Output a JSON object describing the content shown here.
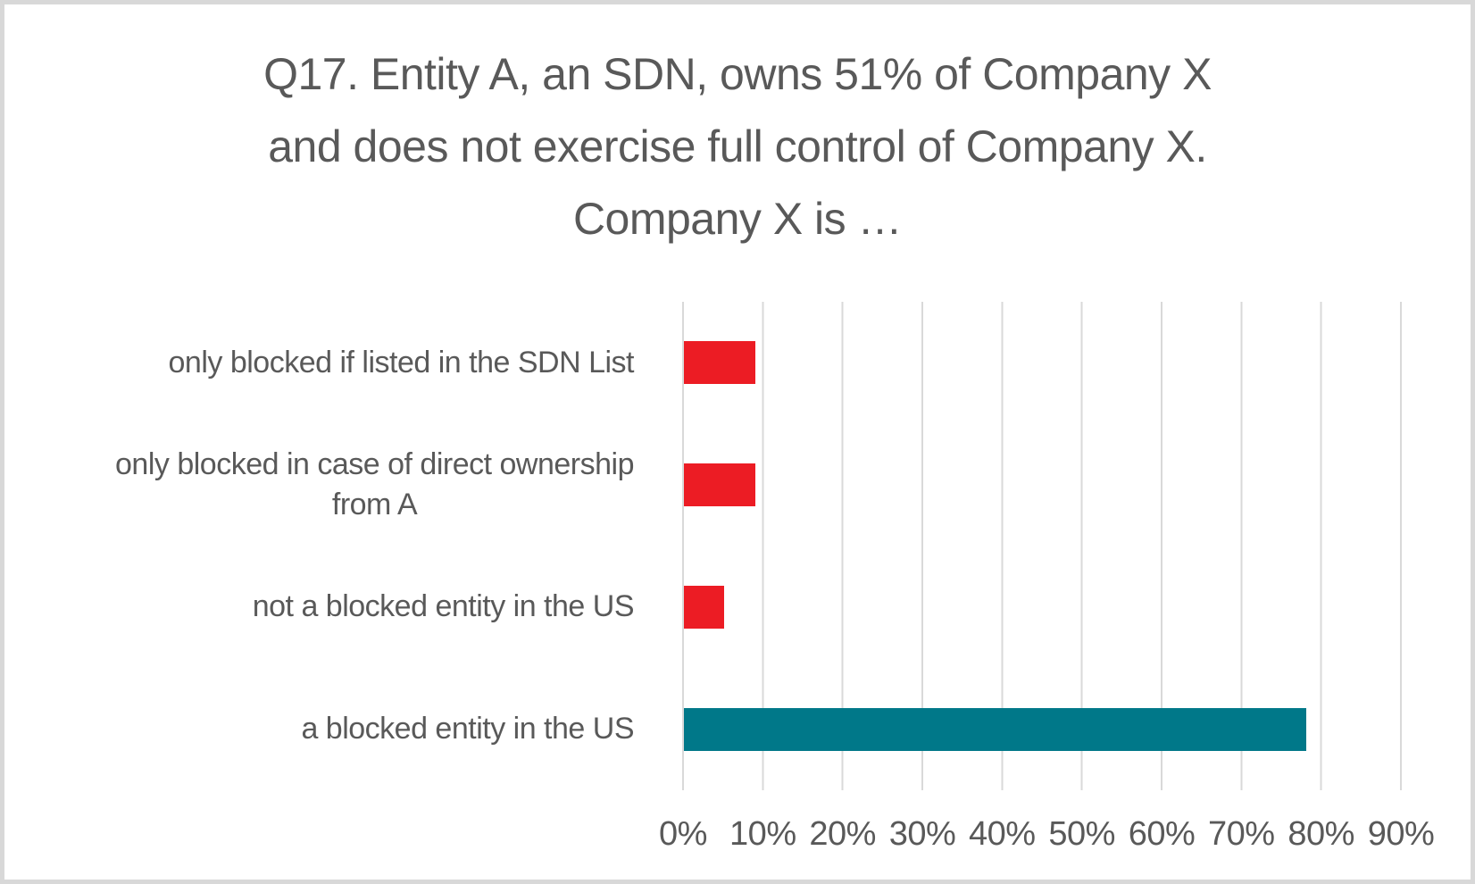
{
  "chart_data": {
    "type": "bar",
    "orientation": "horizontal",
    "title": "Q17. Entity A, an SDN, owns 51% of Company X and does not exercise full control of Company X. Company X is …",
    "title_lines": [
      "Q17. Entity A, an SDN, owns 51% of Company X",
      "and does not exercise full control of Company X.",
      "Company X is …"
    ],
    "categories": [
      "only blocked if listed in the SDN List",
      "only blocked in case of direct ownership\nfrom A",
      "not a blocked entity in the US",
      "a blocked entity in the US"
    ],
    "values": [
      9,
      9,
      5,
      78
    ],
    "unit": "%",
    "xlabel": "",
    "ylabel": "",
    "xlim": [
      0,
      90
    ],
    "x_ticks": [
      "0%",
      "10%",
      "20%",
      "30%",
      "40%",
      "50%",
      "60%",
      "70%",
      "80%",
      "90%"
    ],
    "grid": "vertical",
    "legend": "none",
    "bar_colors": [
      "#ec1c24",
      "#ec1c24",
      "#ec1c24",
      "#007889"
    ],
    "colors": {
      "red_bar": "#ec1c24",
      "teal_bar": "#007889",
      "text": "#595959",
      "gridline": "#d9d9d9",
      "border": "#d8d8d8",
      "background": "#ffffff"
    }
  }
}
